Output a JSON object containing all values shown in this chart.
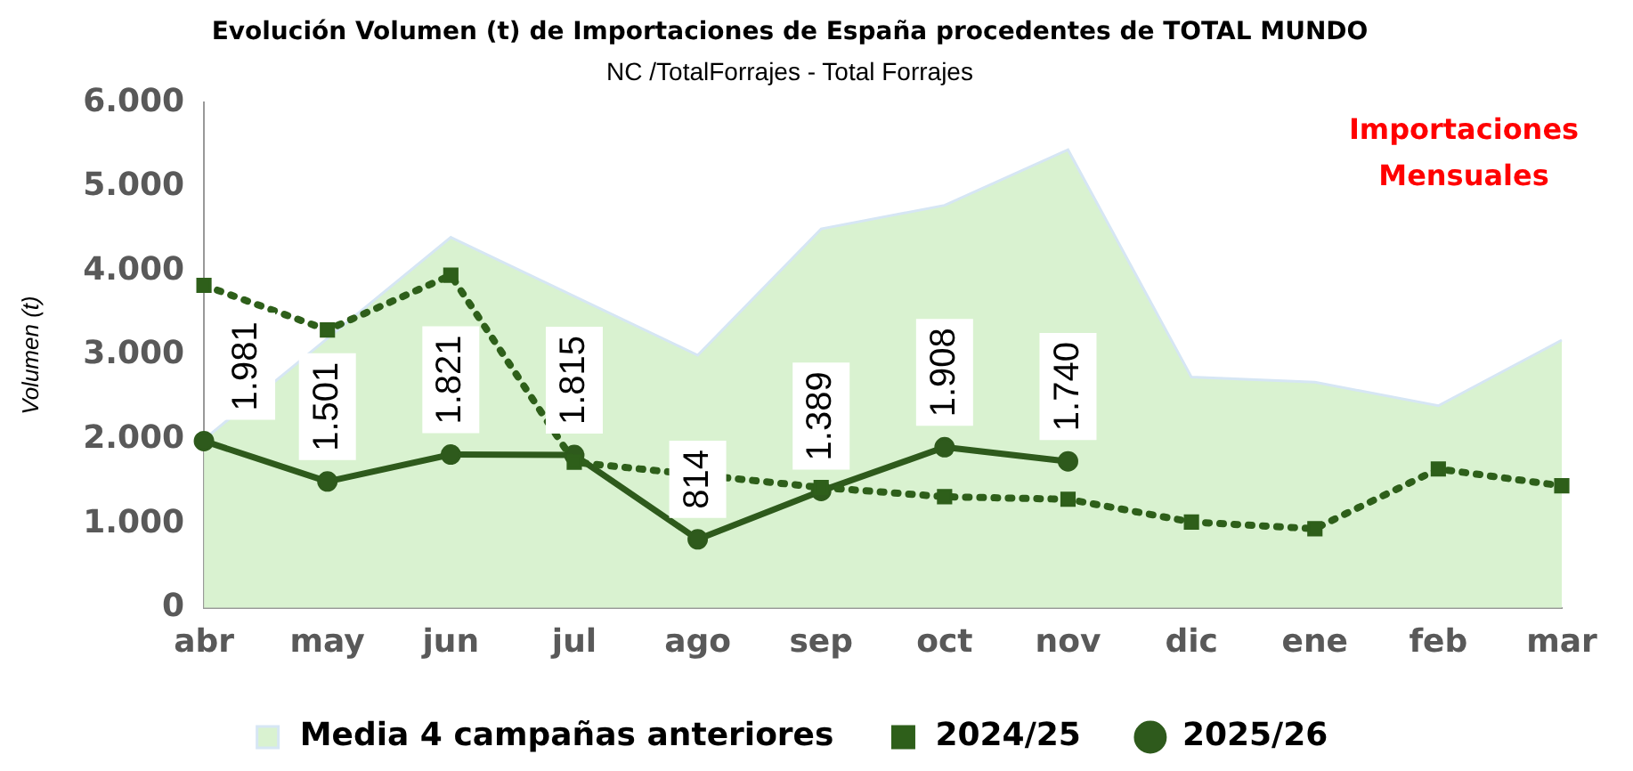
{
  "chart_data": {
    "type": "line",
    "title": "Evolución Volumen (t) de Importaciones de España procedentes de TOTAL MUNDO",
    "subtitle": "NC /TotalForrajes - Total Forrajes",
    "ylabel": "Volumen (t)",
    "annotations": [
      "Importaciones Mensuales"
    ],
    "categories": [
      "abr",
      "may",
      "jun",
      "jul",
      "ago",
      "sep",
      "oct",
      "nov",
      "dic",
      "ene",
      "feb",
      "mar"
    ],
    "series": [
      {
        "name": "Media 4 campañas anteriores",
        "type": "area",
        "color": "#d9f2d0",
        "values": [
          2000,
          3200,
          4400,
          null,
          3000,
          4500,
          4780,
          5440,
          2740,
          2680,
          2400,
          3180
        ]
      },
      {
        "name": "2024/25",
        "color": "#2e5f1a",
        "marker": "square",
        "line_style": "dotted",
        "values": [
          3830,
          3300,
          3950,
          1730,
          null,
          1430,
          1320,
          1290,
          1020,
          940,
          1650,
          1450
        ]
      },
      {
        "name": "2025/26",
        "color": "#2e5a1c",
        "marker": "circle",
        "line_style": "solid",
        "values": [
          1981,
          1501,
          1821,
          1815,
          814,
          1389,
          1908,
          1740,
          null,
          null,
          null,
          null
        ],
        "value_labels": [
          "1.981",
          "1.501",
          "1.821",
          "1.815",
          "814",
          "1.389",
          "1.908",
          "1.740",
          null,
          null,
          null,
          null
        ]
      }
    ],
    "ylim": [
      0,
      6000
    ],
    "yticks": [
      {
        "value": 0,
        "label": "0"
      },
      {
        "value": 1000,
        "label": "1.000"
      },
      {
        "value": 2000,
        "label": "2.000"
      },
      {
        "value": 3000,
        "label": "3.000"
      },
      {
        "value": 4000,
        "label": "4.000"
      },
      {
        "value": 5000,
        "label": "5.000"
      },
      {
        "value": 6000,
        "label": "6.000"
      }
    ],
    "grid": false,
    "legend": "bottom"
  }
}
